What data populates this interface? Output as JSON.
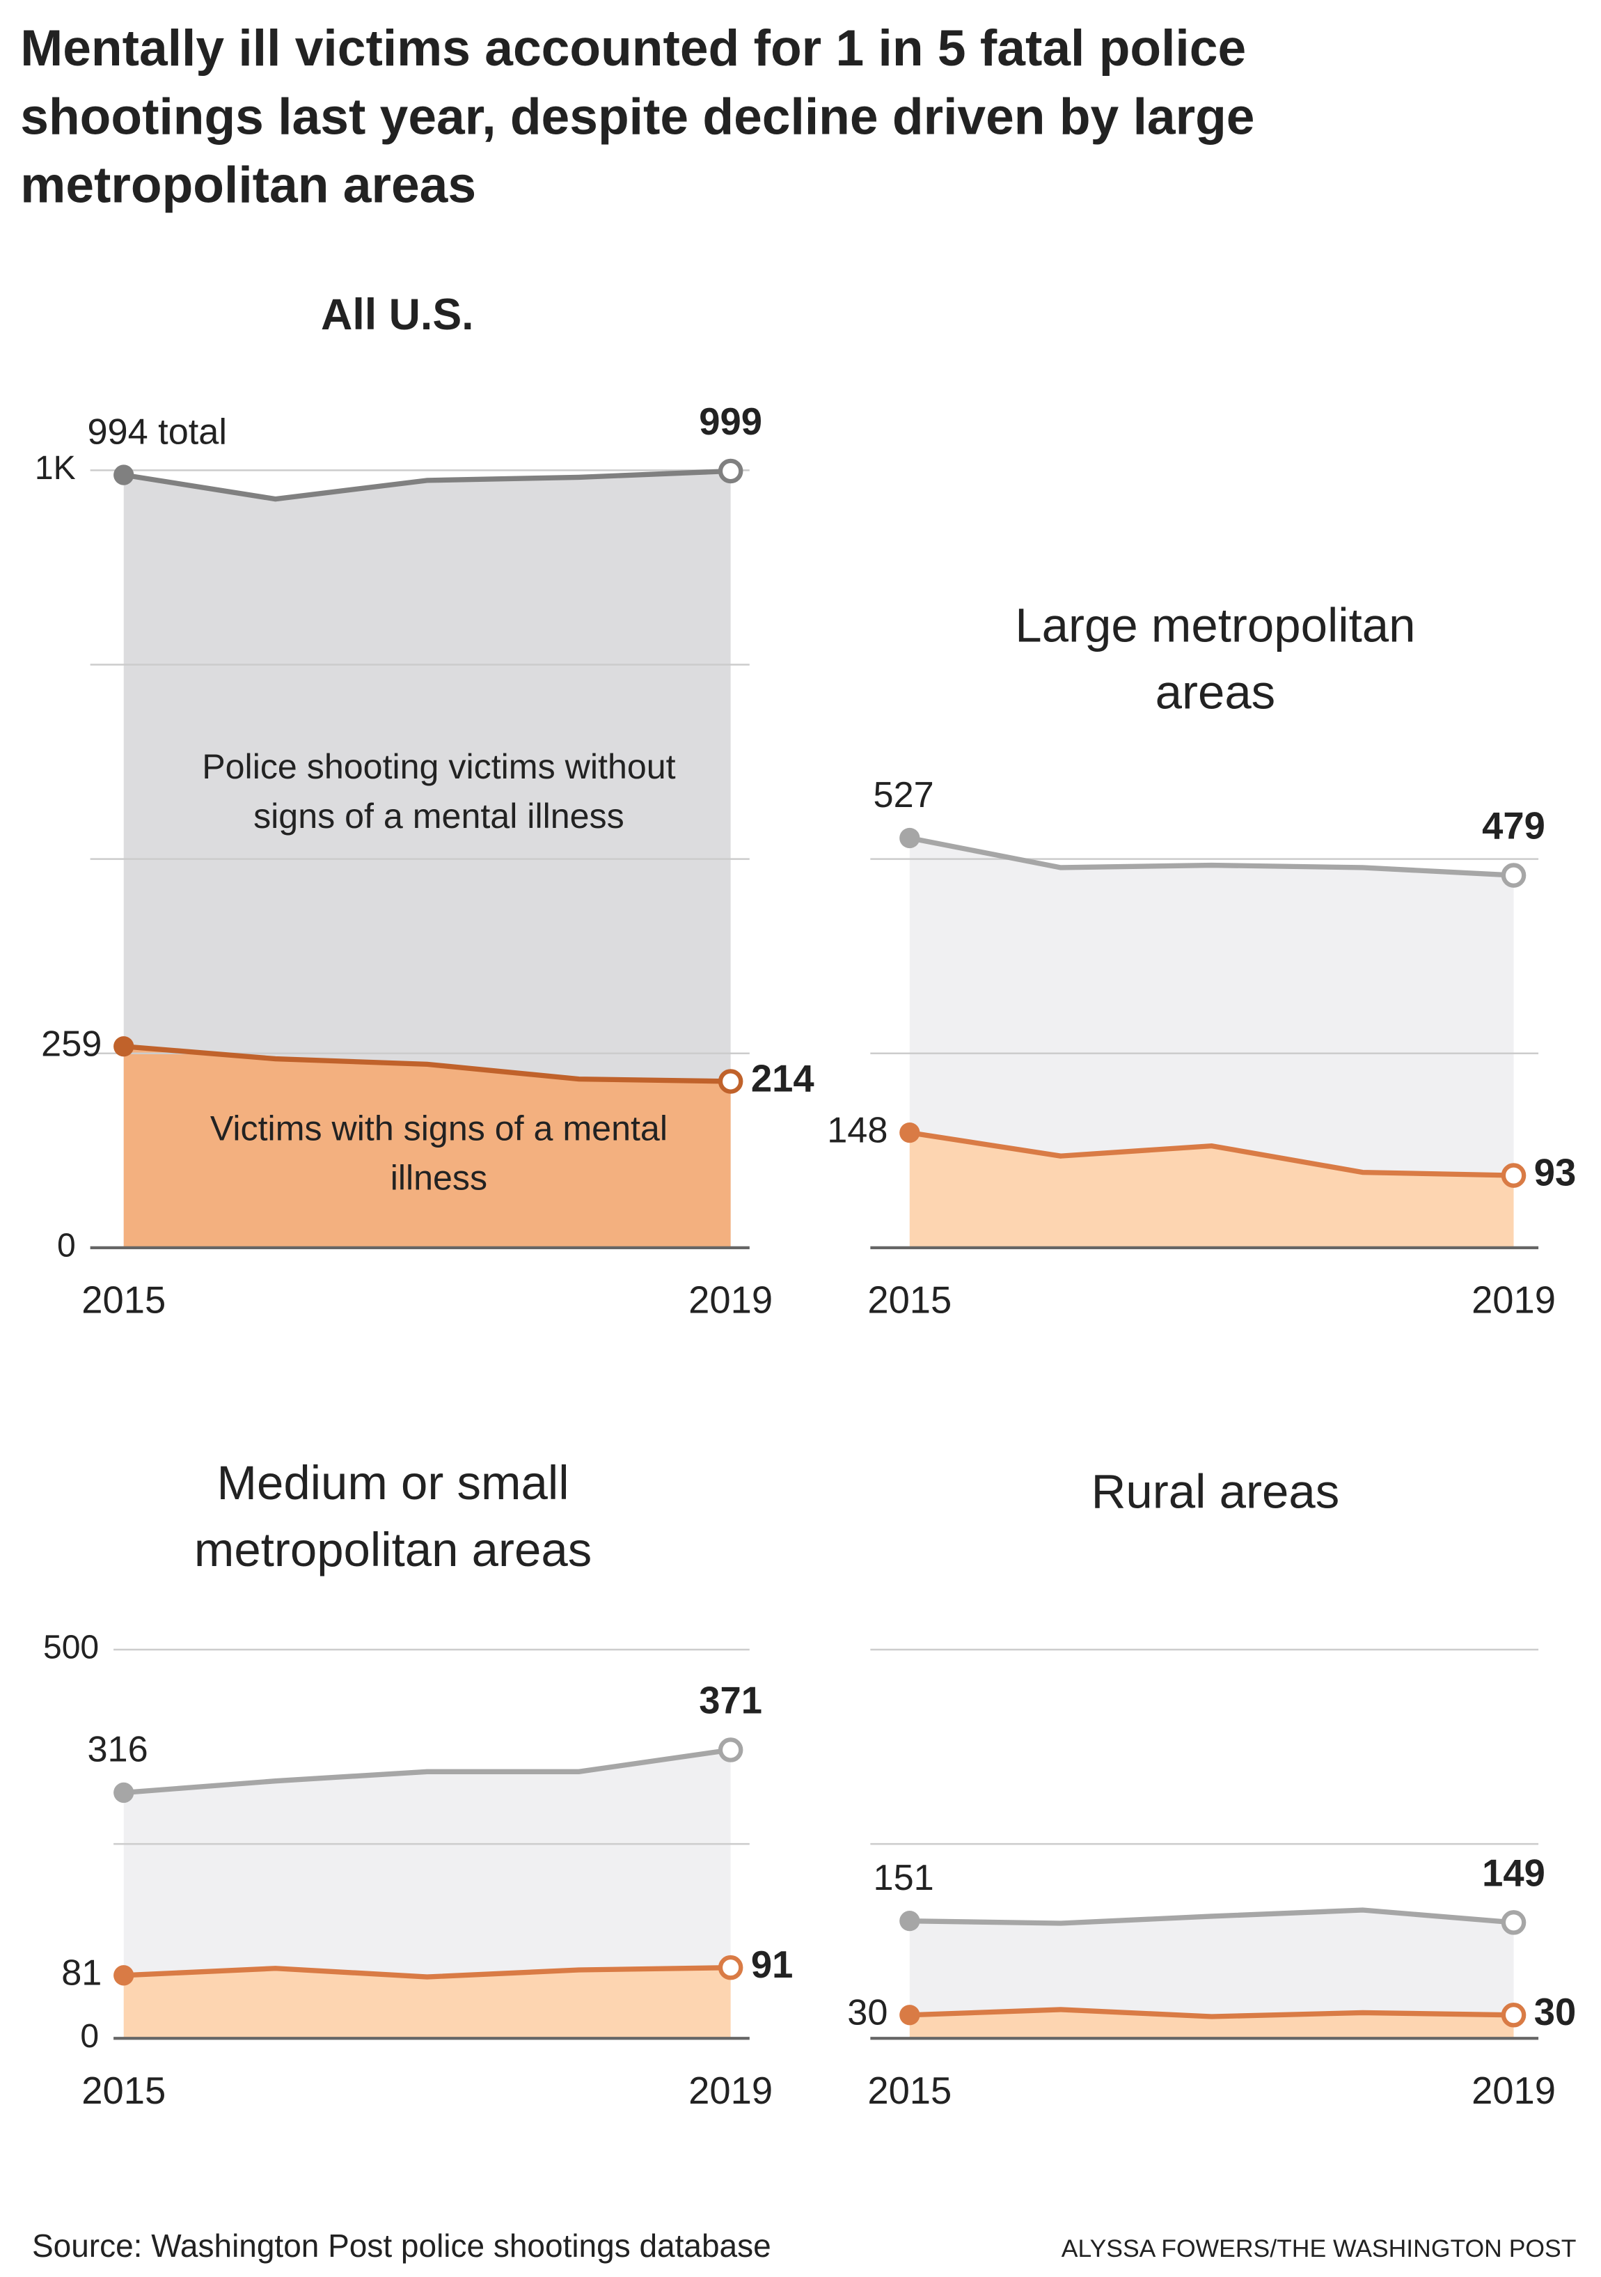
{
  "title": "Mentally ill victims accounted for 1 in 5 fatal police shootings last year, despite decline driven by large metropolitan areas",
  "source": "Source: Washington Post police shootings database",
  "credit": "ALYSSA FOWERS/THE WASHINGTON POST",
  "chart_data": [
    {
      "type": "area",
      "title": "All U.S.",
      "x": [
        2015,
        2016,
        2017,
        2018,
        2019
      ],
      "xlim": [
        2015,
        2019
      ],
      "xticks": [
        2015,
        2019
      ],
      "ylim": [
        0,
        1000
      ],
      "yticks": [
        0,
        {
          "value": 250,
          "label": null
        },
        {
          "value": 500,
          "label": null
        },
        {
          "value": 750,
          "label": null
        },
        {
          "value": 1000,
          "label": "1K"
        }
      ],
      "grid": true,
      "series": [
        {
          "color": "#808080",
          "fill": "#dcdcde",
          "values": [
            994,
            963,
            987,
            991,
            999
          ],
          "value_labels": [
            "994 total",
            null,
            null,
            null,
            "999"
          ]
        },
        {
          "color": "#c0622b",
          "fill": "#f3b07f",
          "values": [
            259,
            243,
            236,
            217,
            214
          ]
        }
      ],
      "annotations": [
        "Police shooting victims without signs of a mental illness",
        "Victims with signs of a mental illness"
      ]
    },
    {
      "type": "area",
      "title": "Large metropolitan areas",
      "x": [
        2015,
        2016,
        2017,
        2018,
        2019
      ],
      "xlim": [
        2015,
        2019
      ],
      "xticks": [
        2015,
        2019
      ],
      "ylim": [
        0,
        500
      ],
      "yticks": [
        {
          "value": 0,
          "label": null
        },
        {
          "value": 250,
          "label": null
        },
        {
          "value": 500,
          "label": null
        }
      ],
      "grid": true,
      "series": [
        {
          "color": "#a6a6a6",
          "fill": "#f0f0f2",
          "values": [
            527,
            489,
            492,
            489,
            479
          ]
        },
        {
          "color": "#d97b45",
          "fill": "#fdd5b1",
          "values": [
            148,
            118,
            131,
            97,
            93
          ]
        }
      ]
    },
    {
      "type": "area",
      "title": "Medium or small metropolitan areas",
      "x": [
        2015,
        2016,
        2017,
        2018,
        2019
      ],
      "xlim": [
        2015,
        2019
      ],
      "xticks": [
        2015,
        2019
      ],
      "ylim": [
        0,
        500
      ],
      "yticks": [
        0,
        {
          "value": 250,
          "label": null
        },
        500
      ],
      "grid": true,
      "series": [
        {
          "color": "#a6a6a6",
          "fill": "#f0f0f2",
          "values": [
            316,
            331,
            343,
            343,
            371
          ]
        },
        {
          "color": "#d97b45",
          "fill": "#fdd5b1",
          "values": [
            81,
            90,
            79,
            88,
            91
          ]
        }
      ]
    },
    {
      "type": "area",
      "title": "Rural areas",
      "x": [
        2015,
        2016,
        2017,
        2018,
        2019
      ],
      "xlim": [
        2015,
        2019
      ],
      "xticks": [
        2015,
        2019
      ],
      "ylim": [
        0,
        500
      ],
      "yticks": [
        {
          "value": 0,
          "label": null
        },
        {
          "value": 250,
          "label": null
        },
        {
          "value": 500,
          "label": null
        }
      ],
      "grid": true,
      "series": [
        {
          "color": "#a6a6a6",
          "fill": "#f0f0f2",
          "values": [
            151,
            148,
            157,
            165,
            149
          ]
        },
        {
          "color": "#d97b45",
          "fill": "#fdd5b1",
          "values": [
            30,
            37,
            28,
            33,
            30
          ]
        }
      ]
    }
  ]
}
